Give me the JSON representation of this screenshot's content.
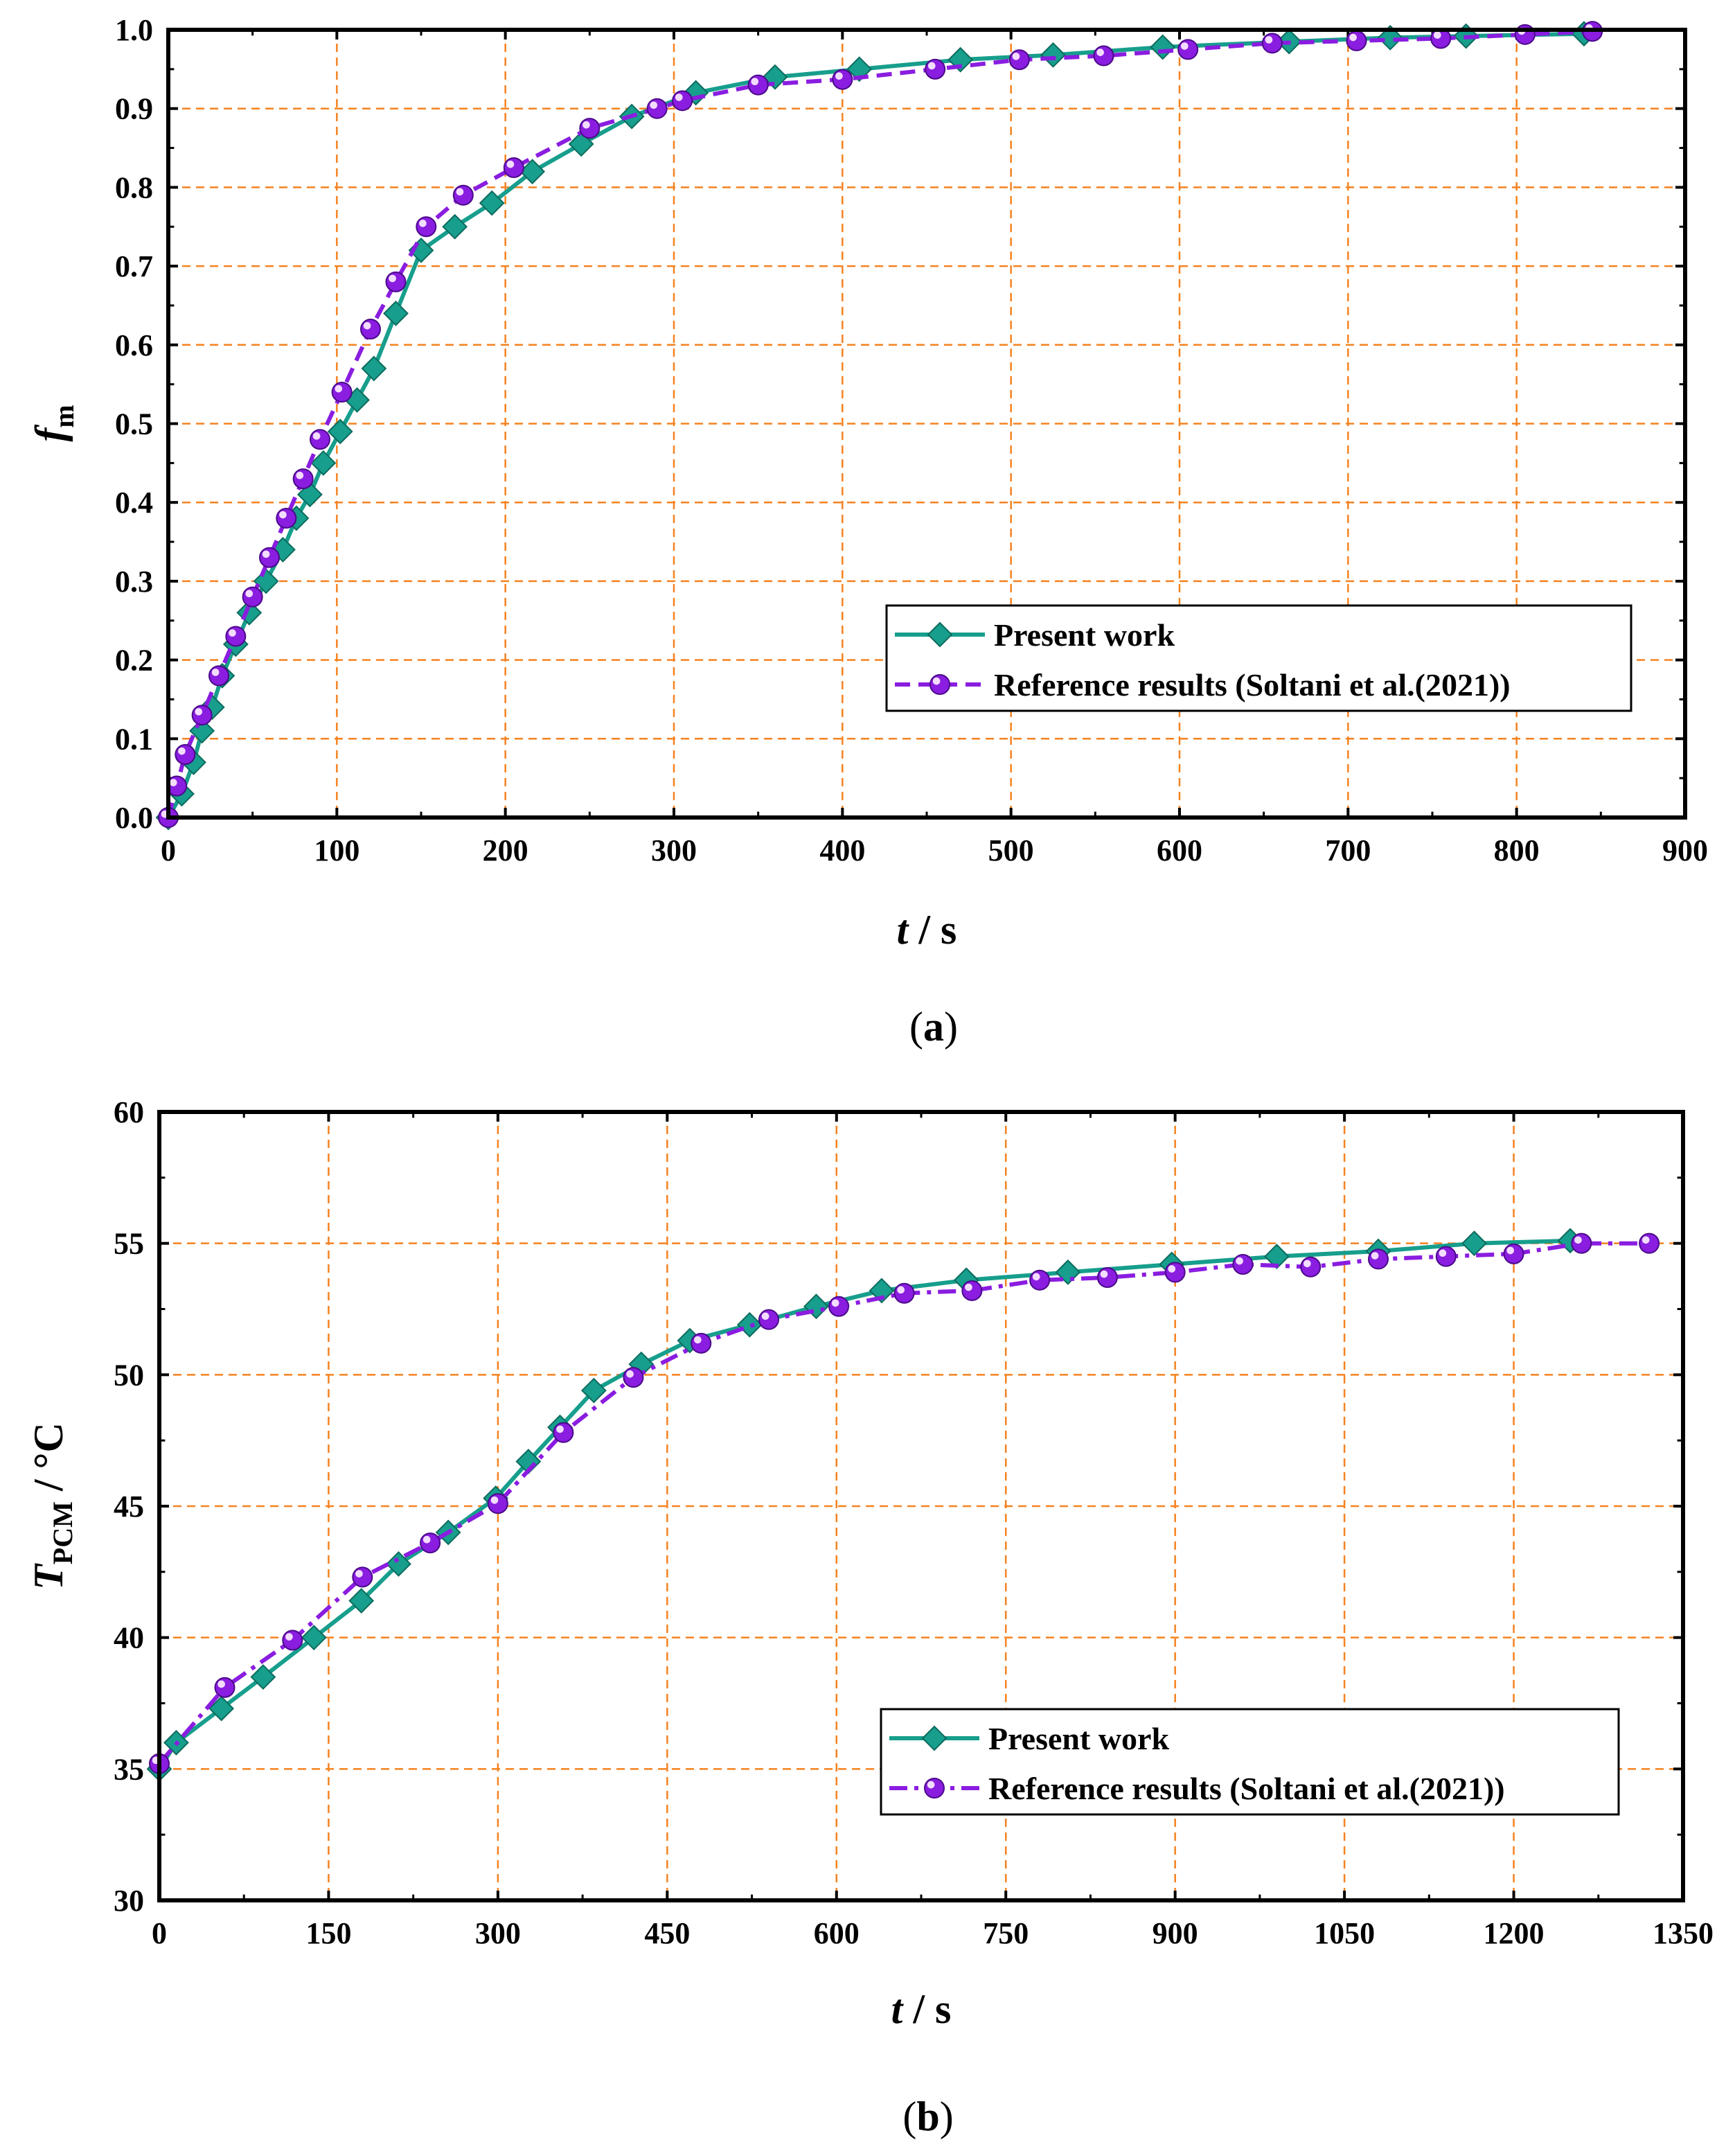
{
  "chart_data": [
    {
      "type": "line",
      "panel_label": "(a)",
      "panel_letter": "a",
      "xlabel": "t",
      "xlabel_unit": " / s",
      "ylabel": "f",
      "ylabel_sub": "m",
      "xlim": [
        0,
        900
      ],
      "ylim": [
        0,
        1.0
      ],
      "xticks": [
        0,
        100,
        200,
        300,
        400,
        500,
        600,
        700,
        800,
        900
      ],
      "yticks": [
        0.0,
        0.1,
        0.2,
        0.3,
        0.4,
        0.5,
        0.6,
        0.7,
        0.8,
        0.9,
        1.0
      ],
      "ytick_decimals": 1,
      "grid": true,
      "grid_color": "#f58220",
      "legend_position": "bottom-right",
      "series": [
        {
          "name": "Present work",
          "color": "#179e8c",
          "marker": "diamond",
          "line_style": "solid",
          "x": [
            0,
            8,
            15,
            20,
            26,
            32,
            40,
            48,
            58,
            68,
            76,
            84,
            92,
            102,
            112,
            122,
            135,
            150,
            170,
            192,
            216,
            245,
            275,
            313,
            360,
            410,
            470,
            525,
            590,
            665,
            725,
            770,
            840
          ],
          "y": [
            0.0,
            0.03,
            0.07,
            0.11,
            0.14,
            0.18,
            0.22,
            0.26,
            0.3,
            0.34,
            0.38,
            0.41,
            0.45,
            0.49,
            0.53,
            0.57,
            0.64,
            0.72,
            0.75,
            0.78,
            0.82,
            0.855,
            0.89,
            0.92,
            0.94,
            0.95,
            0.962,
            0.968,
            0.978,
            0.985,
            0.99,
            0.992,
            0.995
          ]
        },
        {
          "name": "Reference results (Soltani et al.(2021))",
          "color": "#8a1de0",
          "marker": "sphere",
          "line_style": "dashed",
          "x": [
            0,
            5,
            10,
            20,
            30,
            40,
            50,
            60,
            70,
            80,
            90,
            103,
            120,
            135,
            153,
            175,
            205,
            250,
            290,
            305,
            350,
            400,
            455,
            505,
            555,
            605,
            655,
            705,
            755,
            805,
            845
          ],
          "y": [
            0.0,
            0.04,
            0.08,
            0.13,
            0.18,
            0.23,
            0.28,
            0.33,
            0.38,
            0.43,
            0.48,
            0.54,
            0.62,
            0.68,
            0.75,
            0.79,
            0.825,
            0.875,
            0.9,
            0.91,
            0.93,
            0.937,
            0.95,
            0.962,
            0.967,
            0.975,
            0.983,
            0.986,
            0.989,
            0.994,
            0.998
          ]
        }
      ]
    },
    {
      "type": "line",
      "panel_label": "(b)",
      "panel_letter": "b",
      "xlabel": "t",
      "xlabel_unit": " / s",
      "ylabel": "T",
      "ylabel_sub": "PCM",
      "ylabel_unit": " / °C",
      "xlim": [
        0,
        1350
      ],
      "ylim": [
        30,
        60
      ],
      "xticks": [
        0,
        150,
        300,
        450,
        600,
        750,
        900,
        1050,
        1200,
        1350
      ],
      "yticks": [
        30,
        35,
        40,
        45,
        50,
        55,
        60
      ],
      "ytick_decimals": 0,
      "grid": true,
      "grid_color": "#f58220",
      "legend_position": "bottom-right",
      "series": [
        {
          "name": "Present work",
          "color": "#179e8c",
          "marker": "diamond",
          "line_style": "solid",
          "x": [
            0,
            15,
            55,
            92,
            137,
            179,
            212,
            256,
            298,
            327,
            355,
            385,
            427,
            470,
            523,
            582,
            640,
            715,
            805,
            897,
            990,
            1080,
            1165,
            1250
          ],
          "y": [
            35.0,
            36.0,
            37.3,
            38.5,
            40.0,
            41.4,
            42.8,
            44.0,
            45.3,
            46.7,
            48.0,
            49.4,
            50.4,
            51.3,
            51.9,
            52.6,
            53.2,
            53.6,
            53.9,
            54.2,
            54.5,
            54.7,
            55.0,
            55.1
          ]
        },
        {
          "name": "Reference results (Soltani et al.(2021))",
          "color": "#8a1de0",
          "marker": "sphere",
          "line_style": "dash-dot",
          "x": [
            0,
            58,
            118,
            180,
            240,
            300,
            358,
            420,
            480,
            540,
            602,
            660,
            720,
            780,
            840,
            900,
            960,
            1020,
            1080,
            1140,
            1200,
            1260,
            1320
          ],
          "y": [
            35.2,
            38.1,
            39.9,
            42.3,
            43.6,
            45.1,
            47.8,
            49.9,
            51.2,
            52.1,
            52.6,
            53.1,
            53.2,
            53.6,
            53.7,
            53.9,
            54.2,
            54.1,
            54.4,
            54.5,
            54.6,
            55.0,
            55.0
          ]
        }
      ]
    }
  ]
}
